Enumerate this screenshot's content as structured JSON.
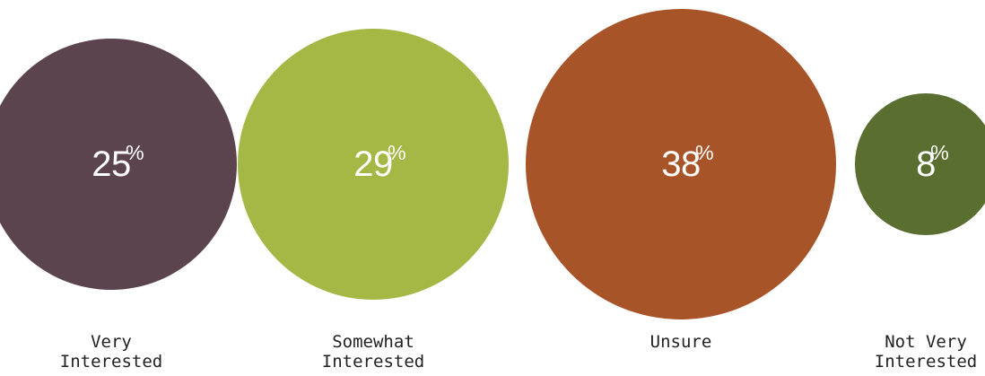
{
  "chart_data": {
    "type": "bubble",
    "title": "",
    "categories": [
      "Very\nInterested",
      "Somewhat\nInterested",
      "Unsure",
      "Not Very\nInterested"
    ],
    "values": [
      25,
      29,
      38,
      8
    ],
    "value_labels": [
      "25",
      "29",
      "38",
      "8"
    ],
    "unit": "%",
    "colors": [
      "#5b444e",
      "#a5b846",
      "#a85429",
      "#5a6e30"
    ],
    "legend": "none",
    "grid": false
  }
}
